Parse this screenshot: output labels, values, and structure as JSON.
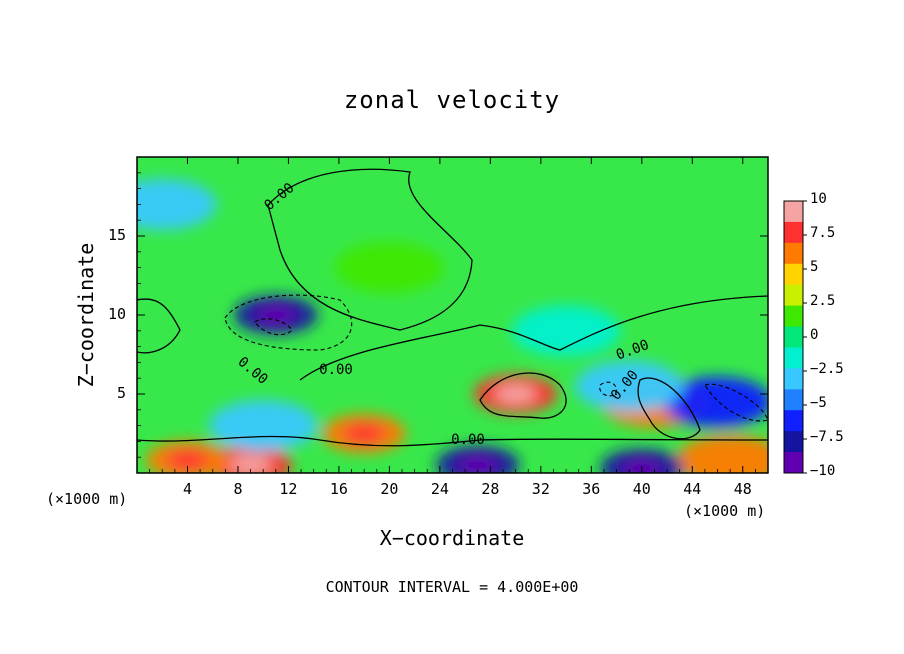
{
  "chart_data": {
    "type": "heatmap",
    "title": "zonal velocity",
    "xlabel": "X−coordinate",
    "ylabel": "Z−coordinate",
    "x_unit": "(×1000 m)",
    "xlim": [
      0,
      50
    ],
    "ylim": [
      0,
      20
    ],
    "x_ticks": [
      4,
      8,
      12,
      16,
      20,
      24,
      28,
      32,
      36,
      40,
      44,
      48
    ],
    "y_ticks": [
      5,
      10,
      15
    ],
    "colorbar": {
      "ticks": [
        10,
        7.5,
        5,
        2.5,
        0,
        -2.5,
        -5,
        -7.5,
        -10
      ],
      "tick_labels": [
        "10",
        "7.5",
        "5",
        "2.5",
        "0",
        "−2.5",
        "−5",
        "−7.5",
        "−10"
      ],
      "colors": [
        "#f5a3a3",
        "#ff3030",
        "#ff7a00",
        "#ffd200",
        "#c8f000",
        "#3ee800",
        "#00e879",
        "#00f0d0",
        "#38c8ff",
        "#2080ff",
        "#1020ff",
        "#1414a0",
        "#6000b0"
      ]
    },
    "contour_labels": [
      "0.00",
      "0.00",
      "0.00",
      "0.00",
      "0.00",
      "0.00"
    ],
    "contour_interval_text": "CONTOUR INTERVAL = 4.000E+00",
    "features": [
      {
        "x": 11,
        "z": 10,
        "value": -8
      },
      {
        "x": 30,
        "z": 5,
        "value": 9
      },
      {
        "x": 18,
        "z": 2.5,
        "value": 7
      },
      {
        "x": 9,
        "z": 0.5,
        "value": 8
      },
      {
        "x": 27,
        "z": 0.5,
        "value": -8
      },
      {
        "x": 41,
        "z": 4.5,
        "value": 6
      },
      {
        "x": 46,
        "z": 4.5,
        "value": -6
      },
      {
        "x": 39,
        "z": 5.5,
        "value": -4
      },
      {
        "x": 2,
        "z": 17,
        "value": -3
      },
      {
        "x": 20,
        "z": 13,
        "value": 2
      },
      {
        "x": 4,
        "z": 0.8,
        "value": 7
      },
      {
        "x": 47,
        "z": 0.8,
        "value": 6
      },
      {
        "x": 10,
        "z": 3,
        "value": -3
      },
      {
        "x": 40,
        "z": 0.3,
        "value": -8
      },
      {
        "x": 34,
        "z": 9,
        "value": -1.5
      }
    ]
  }
}
